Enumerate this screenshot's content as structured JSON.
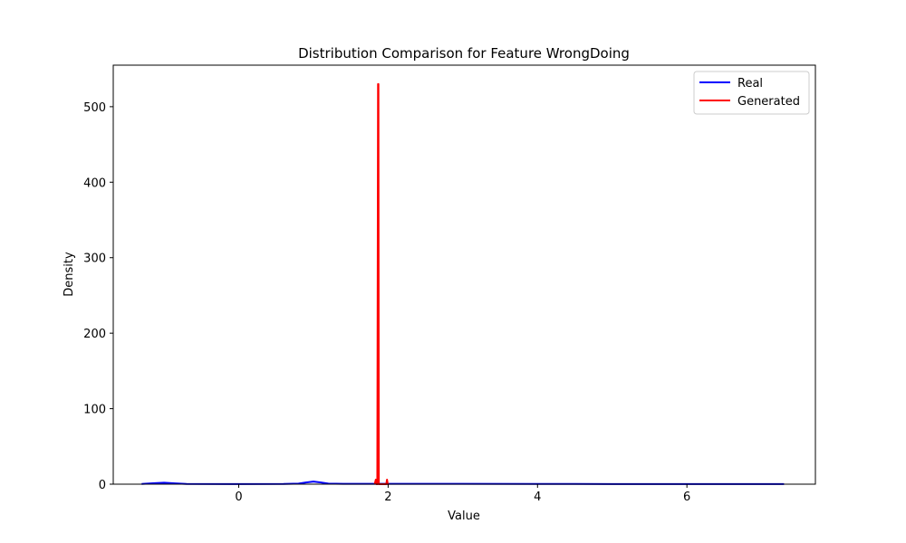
{
  "chart_data": {
    "type": "line",
    "title": "Distribution Comparison for Feature WrongDoing",
    "xlabel": "Value",
    "ylabel": "Density",
    "xlim": [
      -1.68,
      7.72
    ],
    "ylim": [
      0,
      555
    ],
    "xticks": [
      0,
      2,
      4,
      6
    ],
    "yticks": [
      0,
      100,
      200,
      300,
      400,
      500
    ],
    "grid": false,
    "legend_position": "top-right",
    "series": [
      {
        "name": "Real",
        "color": "#0000ff",
        "x": [
          -1.3,
          -1.15,
          -1.0,
          -0.85,
          -0.7,
          0.0,
          0.6,
          0.8,
          0.9,
          1.0,
          1.1,
          1.2,
          1.4,
          2.0,
          3.0,
          4.0,
          5.0,
          6.0,
          7.3
        ],
        "y": [
          0.3,
          1.2,
          2.0,
          1.0,
          0.3,
          0.2,
          0.3,
          0.8,
          2.2,
          3.5,
          2.2,
          0.8,
          0.4,
          0.4,
          0.5,
          0.3,
          0.2,
          0.2,
          0.2
        ]
      },
      {
        "name": "Generated",
        "color": "#ff0000",
        "x": [
          1.82,
          1.835,
          1.845,
          1.85,
          1.855,
          1.865,
          1.87,
          1.875,
          1.88,
          1.885,
          1.89,
          1.9,
          1.95,
          1.975,
          1.985,
          1.995,
          2.01
        ],
        "y": [
          0,
          6,
          0,
          0,
          0,
          530,
          530,
          0,
          0,
          0,
          0,
          0,
          0,
          0,
          6,
          0,
          0
        ]
      }
    ]
  }
}
